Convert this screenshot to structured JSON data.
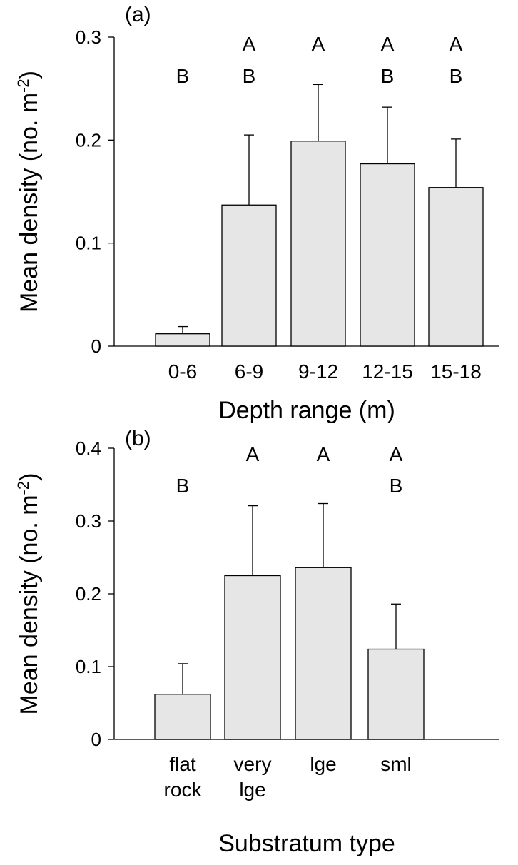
{
  "chart_data": [
    {
      "type": "bar",
      "panel_label": "(a)",
      "xlabel": "Depth range (m)",
      "ylabel": "Mean density (no. m",
      "ylabel_sup": "-2",
      "ylabel_close": ")",
      "ylim": [
        0,
        0.3
      ],
      "yticks": [
        0,
        0.1,
        0.2,
        0.3
      ],
      "ytick_labels": [
        "0",
        "0.1",
        "0.2",
        "0.3"
      ],
      "categories": [
        [
          "0-6"
        ],
        [
          "6-9"
        ],
        [
          "9-12"
        ],
        [
          "12-15"
        ],
        [
          "15-18"
        ]
      ],
      "values": [
        0.012,
        0.137,
        0.199,
        0.177,
        0.154
      ],
      "errors": [
        0.007,
        0.068,
        0.055,
        0.055,
        0.047
      ],
      "significance": [
        [
          "B"
        ],
        [
          "A",
          "B"
        ],
        [
          "A"
        ],
        [
          "A",
          "B"
        ],
        [
          "A",
          "B"
        ]
      ],
      "bar_color": "#e6e6e6",
      "grid": false
    },
    {
      "type": "bar",
      "panel_label": "(b)",
      "xlabel": "Substratum type",
      "ylabel": "Mean density (no. m",
      "ylabel_sup": "-2",
      "ylabel_close": ")",
      "ylim": [
        0,
        0.4
      ],
      "yticks": [
        0,
        0.1,
        0.2,
        0.3,
        0.4
      ],
      "ytick_labels": [
        "0",
        "0.1",
        "0.2",
        "0.3",
        "0.4"
      ],
      "categories": [
        [
          "flat",
          "rock"
        ],
        [
          "very",
          "lge"
        ],
        [
          "lge"
        ],
        [
          "sml"
        ]
      ],
      "values": [
        0.062,
        0.225,
        0.236,
        0.124
      ],
      "errors": [
        0.042,
        0.096,
        0.088,
        0.062
      ],
      "significance": [
        [
          "B"
        ],
        [
          "A"
        ],
        [
          "A"
        ],
        [
          "A",
          "B"
        ]
      ],
      "bar_color": "#e6e6e6",
      "grid": false
    }
  ]
}
